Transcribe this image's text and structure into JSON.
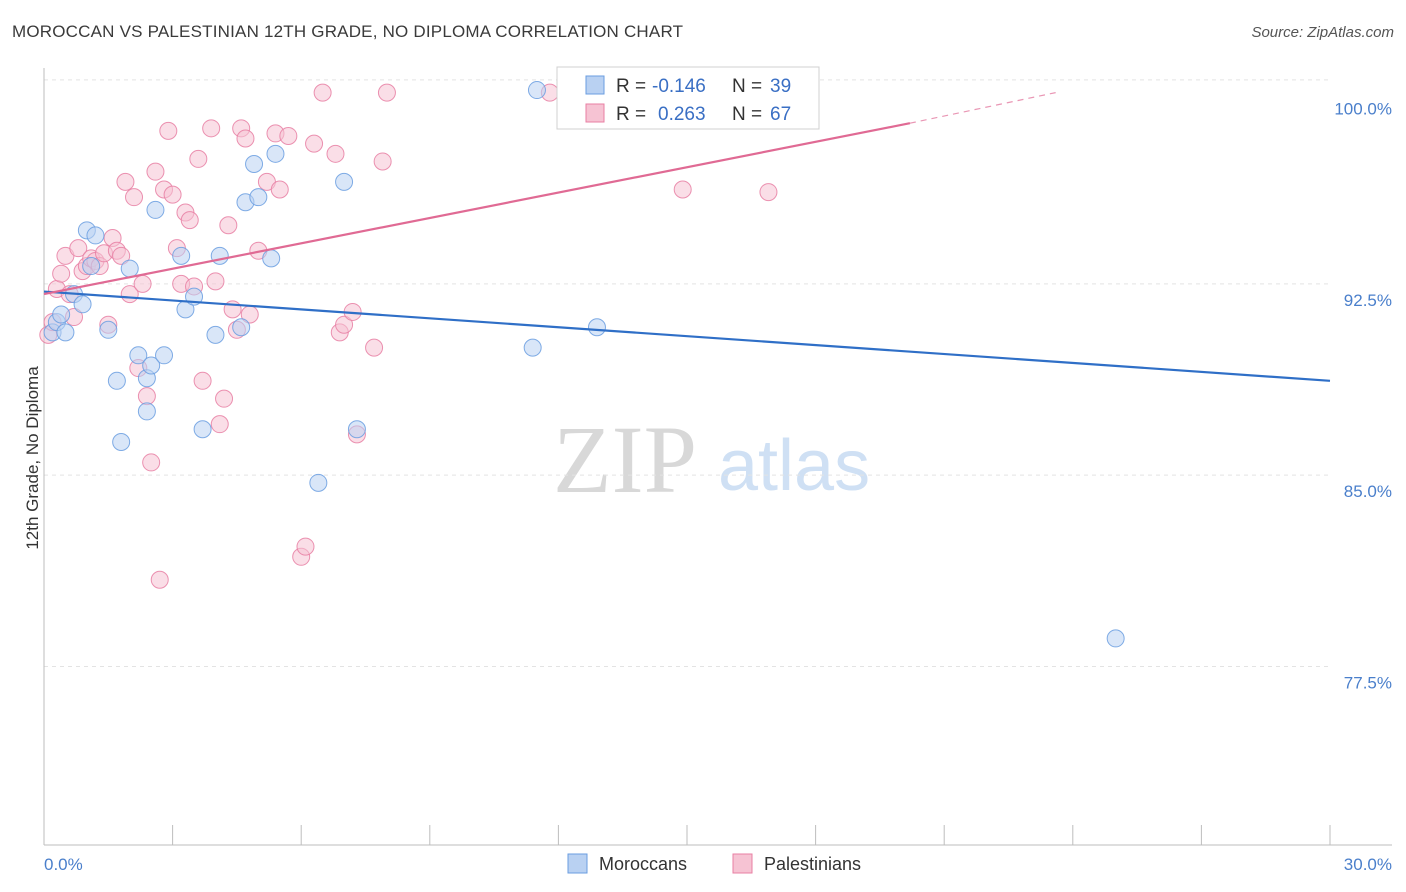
{
  "title": "MOROCCAN VS PALESTINIAN 12TH GRADE, NO DIPLOMA CORRELATION CHART",
  "source": "Source: ZipAtlas.com",
  "watermark": {
    "zip": "ZIP",
    "atlas": "atlas"
  },
  "colors": {
    "moroccans": "#6a9de0",
    "moroccans_fill": "#b9d1f2",
    "moroccans_line": "#2f6fc7",
    "palestinians": "#e87fa3",
    "palestinians_fill": "#f6c3d3",
    "palestinians_line": "#e06a94",
    "tick": "#4a7fcb",
    "grid": "#e3e3e3"
  },
  "stats": [
    {
      "series": "Moroccans",
      "r_label": "R =",
      "r": "-0.146",
      "n_label": "N =",
      "n": "39"
    },
    {
      "series": "Palestinians",
      "r_label": "R =",
      "r": "0.263",
      "n_label": "N =",
      "n": "67"
    }
  ],
  "chart_data": {
    "type": "scatter",
    "title": "MOROCCAN VS PALESTINIAN 12TH GRADE, NO DIPLOMA CORRELATION CHART",
    "xlabel": "",
    "ylabel": "12th Grade, No Diploma",
    "xlim": [
      0,
      30
    ],
    "ylim": [
      70.5,
      101.2
    ],
    "x_ticks": [
      0,
      3,
      6,
      9,
      12,
      15,
      18,
      21,
      24,
      27,
      30
    ],
    "x_tick_labels": [
      {
        "value": 0,
        "label": "0.0%"
      },
      {
        "value": 30,
        "label": "30.0%"
      }
    ],
    "y_ticks": [
      {
        "value": 100,
        "label": "100.0%"
      },
      {
        "value": 92.5,
        "label": "92.5%"
      },
      {
        "value": 85,
        "label": "85.0%"
      },
      {
        "value": 77.5,
        "label": "77.5%"
      }
    ],
    "y_grid": [
      100.5,
      92.5,
      85,
      77.5
    ],
    "grid": true,
    "legend": {
      "position": "bottom-center",
      "entries": [
        "Moroccans",
        "Palestinians"
      ]
    },
    "series": [
      {
        "name": "Moroccans",
        "points": [
          [
            0.2,
            90.6
          ],
          [
            0.3,
            91.0
          ],
          [
            0.4,
            91.3
          ],
          [
            0.5,
            90.6
          ],
          [
            0.7,
            92.1
          ],
          [
            0.9,
            91.7
          ],
          [
            1.0,
            94.6
          ],
          [
            1.1,
            93.2
          ],
          [
            1.2,
            94.4
          ],
          [
            1.5,
            90.7
          ],
          [
            1.7,
            88.7
          ],
          [
            1.8,
            86.3
          ],
          [
            2.0,
            93.1
          ],
          [
            2.2,
            89.7
          ],
          [
            2.4,
            88.8
          ],
          [
            2.5,
            89.3
          ],
          [
            2.6,
            95.4
          ],
          [
            2.4,
            87.5
          ],
          [
            2.8,
            89.7
          ],
          [
            3.2,
            93.6
          ],
          [
            3.3,
            91.5
          ],
          [
            3.5,
            92.0
          ],
          [
            3.7,
            86.8
          ],
          [
            4.0,
            90.5
          ],
          [
            4.1,
            93.6
          ],
          [
            4.6,
            90.8
          ],
          [
            4.7,
            95.7
          ],
          [
            5.0,
            95.9
          ],
          [
            5.3,
            93.5
          ],
          [
            4.9,
            97.2
          ],
          [
            5.4,
            97.6
          ],
          [
            6.4,
            84.7
          ],
          [
            7.0,
            96.5
          ],
          [
            7.3,
            86.8
          ],
          [
            11.5,
            100.1
          ],
          [
            11.4,
            90.0
          ],
          [
            12.9,
            90.8
          ],
          [
            16.0,
            100.1
          ],
          [
            25.0,
            78.6
          ]
        ]
      },
      {
        "name": "Palestinians",
        "points": [
          [
            0.1,
            90.5
          ],
          [
            0.2,
            91.0
          ],
          [
            0.3,
            92.3
          ],
          [
            0.4,
            92.9
          ],
          [
            0.5,
            93.6
          ],
          [
            0.6,
            92.1
          ],
          [
            0.7,
            91.2
          ],
          [
            0.8,
            93.9
          ],
          [
            0.9,
            93.0
          ],
          [
            1.0,
            93.2
          ],
          [
            1.1,
            93.5
          ],
          [
            1.2,
            93.4
          ],
          [
            1.3,
            93.2
          ],
          [
            1.4,
            93.7
          ],
          [
            1.5,
            90.9
          ],
          [
            1.6,
            94.3
          ],
          [
            1.7,
            93.8
          ],
          [
            1.8,
            93.6
          ],
          [
            1.9,
            96.5
          ],
          [
            2.0,
            92.1
          ],
          [
            2.1,
            95.9
          ],
          [
            2.2,
            89.2
          ],
          [
            2.3,
            92.5
          ],
          [
            2.4,
            88.1
          ],
          [
            2.5,
            85.5
          ],
          [
            2.6,
            96.9
          ],
          [
            2.7,
            80.9
          ],
          [
            2.8,
            96.2
          ],
          [
            2.9,
            98.5
          ],
          [
            3.0,
            96.0
          ],
          [
            3.1,
            93.9
          ],
          [
            3.2,
            92.5
          ],
          [
            3.3,
            95.3
          ],
          [
            3.4,
            95.0
          ],
          [
            3.5,
            92.4
          ],
          [
            3.6,
            97.4
          ],
          [
            3.7,
            88.7
          ],
          [
            3.9,
            98.6
          ],
          [
            4.0,
            92.6
          ],
          [
            4.1,
            87.0
          ],
          [
            4.2,
            88.0
          ],
          [
            4.3,
            94.8
          ],
          [
            4.4,
            91.5
          ],
          [
            4.5,
            90.7
          ],
          [
            4.6,
            98.6
          ],
          [
            4.7,
            98.2
          ],
          [
            4.8,
            91.3
          ],
          [
            5.0,
            93.8
          ],
          [
            5.2,
            96.5
          ],
          [
            5.4,
            98.4
          ],
          [
            5.5,
            96.2
          ],
          [
            5.7,
            98.3
          ],
          [
            6.0,
            81.8
          ],
          [
            6.1,
            82.2
          ],
          [
            6.3,
            98.0
          ],
          [
            6.5,
            100.0
          ],
          [
            6.8,
            97.6
          ],
          [
            6.9,
            90.6
          ],
          [
            7.0,
            90.9
          ],
          [
            7.2,
            91.4
          ],
          [
            7.3,
            86.6
          ],
          [
            7.7,
            90.0
          ],
          [
            7.9,
            97.3
          ],
          [
            8.0,
            100.0
          ],
          [
            11.8,
            100.0
          ],
          [
            14.9,
            96.2
          ],
          [
            16.9,
            96.1
          ]
        ]
      }
    ],
    "trend_lines": [
      {
        "series": "Moroccans",
        "from": [
          0,
          92.2
        ],
        "to": [
          30,
          88.7
        ],
        "style": "solid"
      },
      {
        "series": "Palestinians",
        "from": [
          0,
          92.1
        ],
        "to": [
          20.2,
          98.8
        ],
        "style": "solid"
      },
      {
        "series": "Palestinians",
        "from": [
          20.2,
          98.8
        ],
        "to": [
          23.6,
          100.0
        ],
        "style": "dashed"
      }
    ]
  }
}
